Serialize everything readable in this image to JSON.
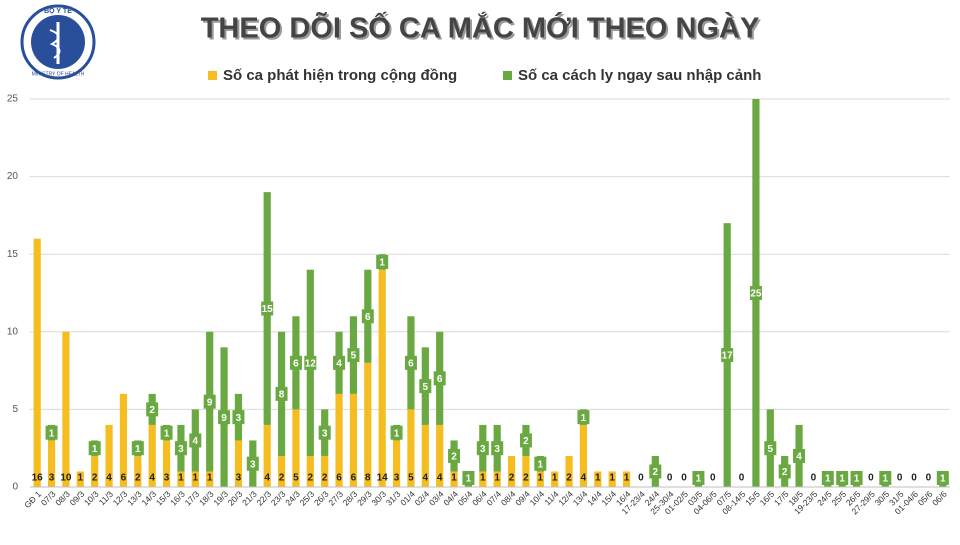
{
  "logo": {
    "top_text": "BỘ Y TẾ",
    "bottom_text": "MINISTRY OF HEALTH"
  },
  "chart_data": {
    "type": "stacked-bar",
    "title": "THEO DÕI SỐ CA MẮC MỚI THEO NGÀY",
    "categories": [
      "GĐ 1",
      "07/3",
      "08/3",
      "09/3",
      "10/3",
      "11/3",
      "12/3",
      "13/3",
      "14/3",
      "15/3",
      "16/3",
      "17/3",
      "18/3",
      "19/3",
      "20/3",
      "21/3",
      "22/3",
      "23/3",
      "24/3",
      "25/3",
      "26/3",
      "27/3",
      "28/3",
      "29/3",
      "30/3",
      "31/3",
      "01/4",
      "02/4",
      "03/4",
      "04/4",
      "05/4",
      "06/4",
      "07/4",
      "08/4",
      "09/4",
      "10/4",
      "11/4",
      "12/4",
      "13/4",
      "14/4",
      "15/4",
      "16/4",
      "17-23/4",
      "24/4",
      "25-30/4",
      "01-02/5",
      "03/5",
      "04-06/5",
      "07/5",
      "08-14/5",
      "15/5",
      "16/5",
      "17/5",
      "18/5",
      "19-23/5",
      "24/5",
      "25/5",
      "26/5",
      "27-29/5",
      "30/5",
      "31/5",
      "01-04/6",
      "05/6",
      "06/6"
    ],
    "series": [
      {
        "name": "Số ca phát hiện trong cộng đồng",
        "color": "#f5bd1f",
        "values": [
          16,
          3,
          10,
          1,
          2,
          4,
          6,
          2,
          4,
          3,
          1,
          1,
          1,
          null,
          3,
          null,
          4,
          2,
          5,
          2,
          2,
          6,
          6,
          8,
          14,
          3,
          5,
          4,
          4,
          1,
          null,
          1,
          1,
          2,
          2,
          1,
          1,
          2,
          4,
          1,
          1,
          1,
          0,
          null,
          0,
          0,
          null,
          0,
          null,
          0,
          null,
          null,
          null,
          null,
          0,
          null,
          null,
          null,
          0,
          null,
          0,
          0,
          0,
          null
        ]
      },
      {
        "name": "Số ca cách ly ngay sau nhập cảnh",
        "color": "#6aa842",
        "values": [
          null,
          1,
          null,
          null,
          1,
          null,
          null,
          1,
          2,
          1,
          3,
          4,
          9,
          9,
          3,
          3,
          15,
          8,
          6,
          12,
          3,
          4,
          5,
          6,
          1,
          1,
          6,
          5,
          6,
          2,
          1,
          3,
          3,
          null,
          2,
          1,
          null,
          null,
          1,
          null,
          null,
          null,
          null,
          2,
          null,
          null,
          1,
          null,
          17,
          null,
          25,
          5,
          2,
          4,
          null,
          1,
          1,
          1,
          null,
          1,
          null,
          null,
          null,
          1
        ]
      }
    ],
    "ylim": [
      0,
      25
    ],
    "yticks": [
      0,
      5,
      10,
      15,
      20,
      25
    ],
    "grid": true
  }
}
